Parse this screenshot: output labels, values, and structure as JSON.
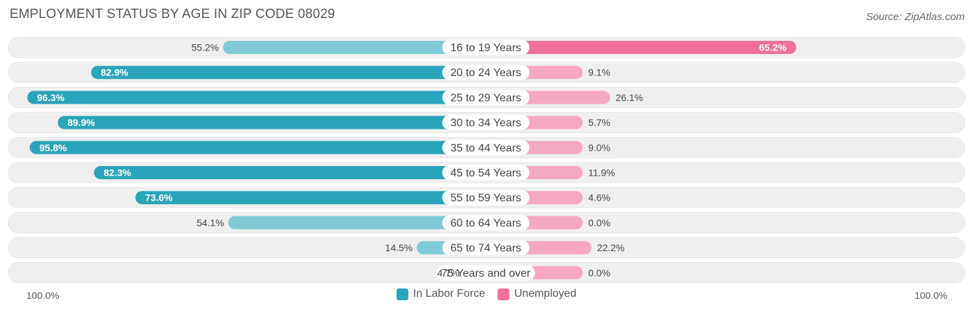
{
  "title": "EMPLOYMENT STATUS BY AGE IN ZIP CODE 08029",
  "source": "Source: ZipAtlas.com",
  "colors": {
    "labor_force": "#2aa4b8",
    "labor_force_light": "#7fcad6",
    "unemployed": "#f0709a",
    "unemployed_light": "#f6a8c0",
    "row_bg": "#efefef"
  },
  "legend": {
    "labor_force": "In Labor Force",
    "unemployed": "Unemployed"
  },
  "axis": {
    "left": "100.0%",
    "right": "100.0%"
  },
  "chart_data": {
    "type": "bar",
    "orientation": "horizontal-diverging",
    "title": "EMPLOYMENT STATUS BY AGE IN ZIP CODE 08029",
    "categories": [
      "16 to 19 Years",
      "20 to 24 Years",
      "25 to 29 Years",
      "30 to 34 Years",
      "35 to 44 Years",
      "45 to 54 Years",
      "55 to 59 Years",
      "60 to 64 Years",
      "65 to 74 Years",
      "75 Years and over"
    ],
    "series": [
      {
        "name": "In Labor Force",
        "values": [
          55.2,
          82.9,
          96.3,
          89.9,
          95.8,
          82.3,
          73.6,
          54.1,
          14.5,
          4.7
        ]
      },
      {
        "name": "Unemployed",
        "values": [
          65.2,
          9.1,
          26.1,
          5.7,
          9.0,
          11.9,
          4.6,
          0.0,
          22.2,
          0.0
        ]
      }
    ],
    "xlim": [
      -100,
      100
    ],
    "value_format": "{v}%"
  }
}
